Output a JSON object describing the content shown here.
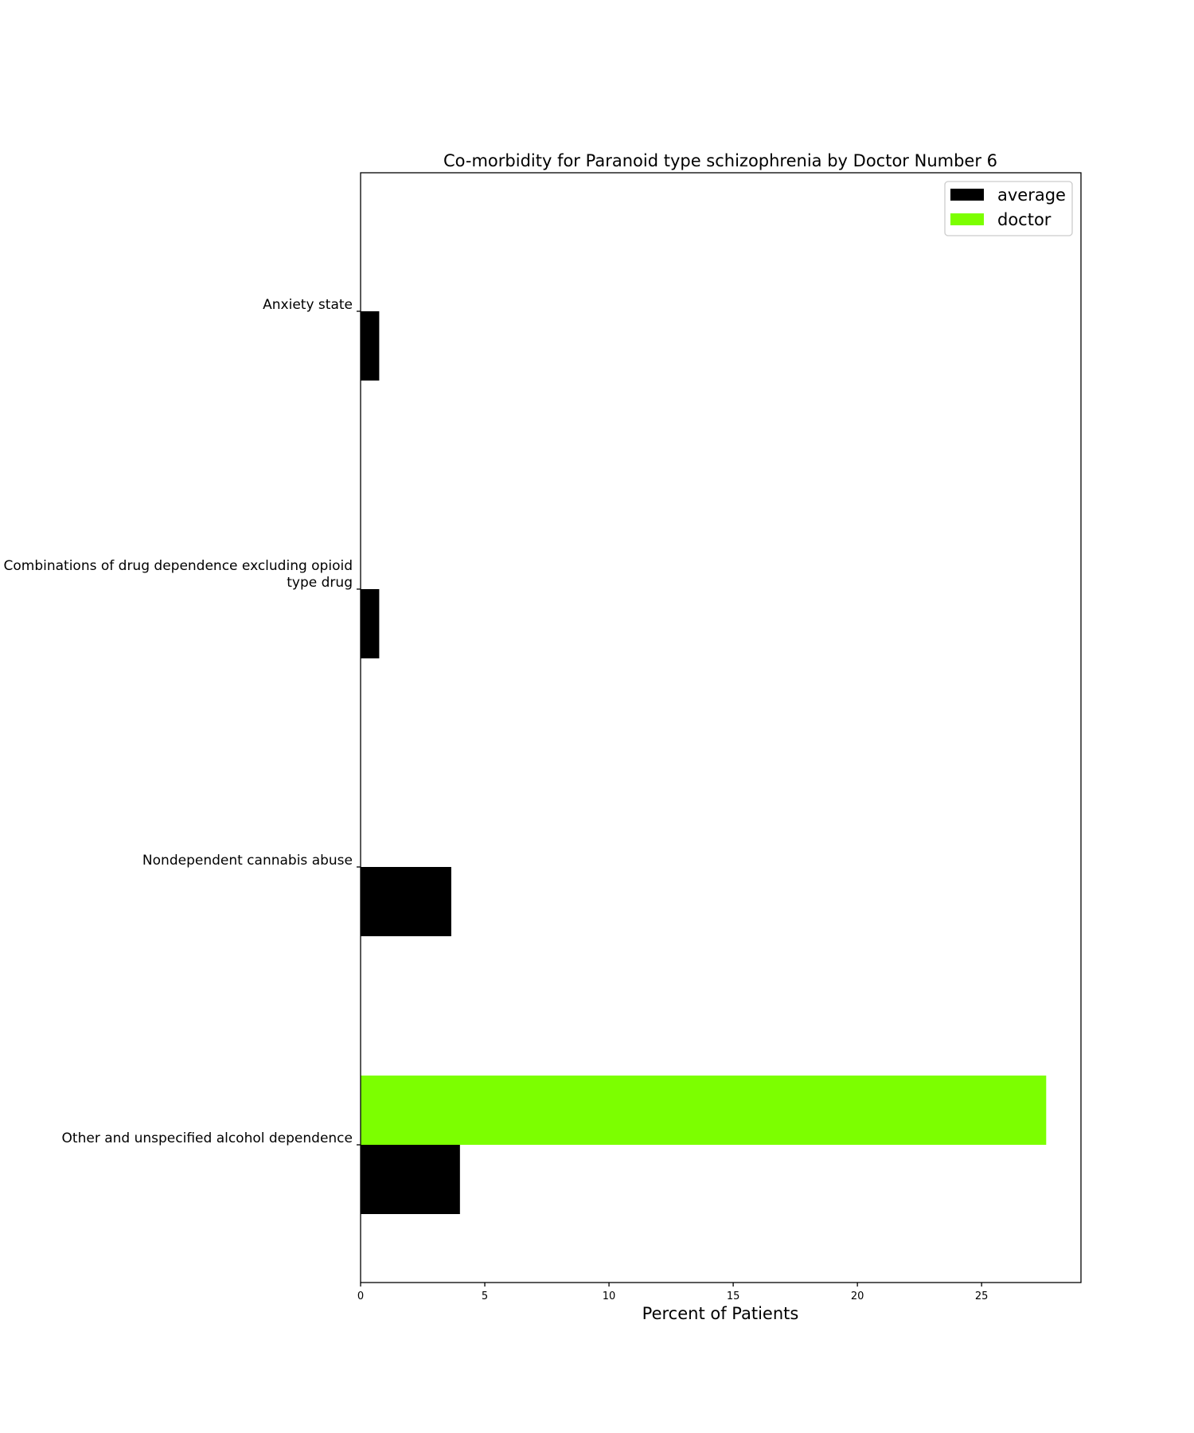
{
  "chart_data": {
    "type": "bar",
    "orientation": "horizontal",
    "title": "Co-morbidity for Paranoid type schizophrenia by Doctor Number 6",
    "xlabel": "Percent of Patients",
    "ylabel": "",
    "xlim": [
      0,
      29
    ],
    "xticks": [
      0,
      5,
      10,
      15,
      20,
      25
    ],
    "grid": false,
    "legend_position": "top-right",
    "categories": [
      [
        "Anxiety state"
      ],
      [
        "Combinations of drug dependence excluding opioid",
        "type drug"
      ],
      [
        "Nondependent cannabis abuse"
      ],
      [
        "Other and unspecified alcohol dependence"
      ]
    ],
    "series": [
      {
        "name": "average",
        "color": "#000000",
        "values": [
          0.75,
          0.75,
          3.65,
          4.0
        ]
      },
      {
        "name": "doctor",
        "color": "#7cff00",
        "values": [
          0,
          0,
          0,
          27.6
        ]
      }
    ]
  }
}
